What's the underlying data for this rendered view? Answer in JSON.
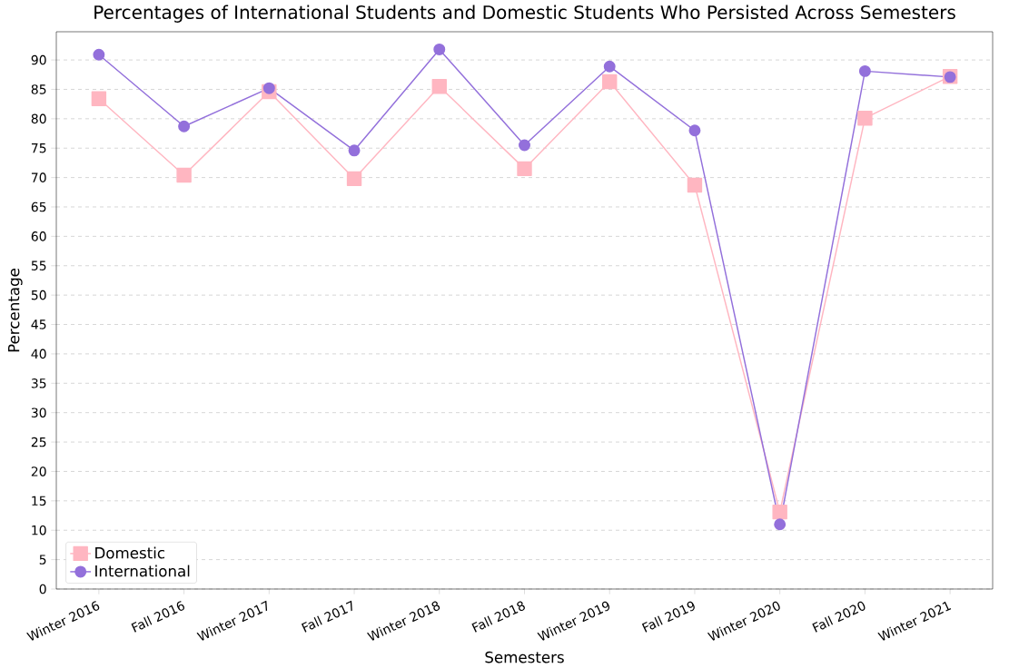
{
  "chart_data": {
    "type": "line",
    "title": "Percentages of International Students and Domestic Students Who Persisted Across Semesters",
    "xlabel": "Semesters",
    "ylabel": "Percentage",
    "categories": [
      "Winter 2016",
      "Fall 2016",
      "Winter 2017",
      "Fall 2017",
      "Winter 2018",
      "Fall 2018",
      "Winter 2019",
      "Fall 2019",
      "Winter 2020",
      "Fall 2020",
      "Winter 2021"
    ],
    "series": [
      {
        "name": "Domestic",
        "color": "#ffb6c1",
        "marker": "square",
        "values": [
          83.4,
          70.4,
          84.6,
          69.8,
          85.5,
          71.5,
          86.3,
          68.7,
          13.1,
          80.1,
          87.2
        ]
      },
      {
        "name": "International",
        "color": "#9370db",
        "marker": "circle",
        "values": [
          90.9,
          78.7,
          85.2,
          74.6,
          91.8,
          75.5,
          88.9,
          78.0,
          11.0,
          88.1,
          87.1
        ]
      }
    ],
    "ylim": [
      0,
      94.8
    ],
    "yticks": [
      0,
      5,
      10,
      15,
      20,
      25,
      30,
      35,
      40,
      45,
      50,
      55,
      60,
      65,
      70,
      75,
      80,
      85,
      90
    ],
    "grid": "y",
    "legend": "bottom left",
    "line_style": "solid"
  }
}
